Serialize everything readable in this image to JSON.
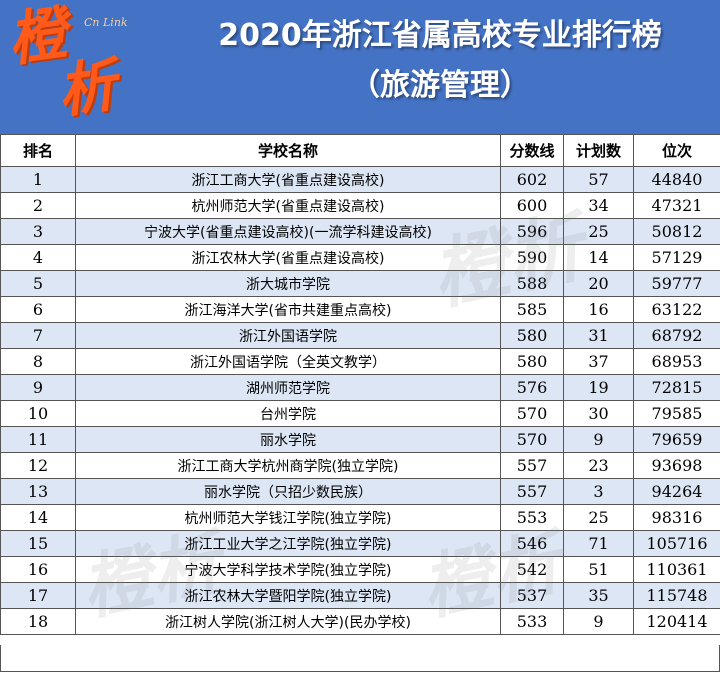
{
  "logo": {
    "line1": "橙",
    "line2": "析",
    "badge": "Cn Link"
  },
  "header": {
    "title": "2020年浙江省属高校专业排行榜",
    "subtitle": "（旅游管理）"
  },
  "table": {
    "columns": [
      "排名",
      "学校名称",
      "分数线",
      "计划数",
      "位次"
    ],
    "rows": [
      {
        "rank": "1",
        "school": "浙江工商大学(省重点建设高校)",
        "score": "602",
        "plan": "57",
        "position": "44840"
      },
      {
        "rank": "2",
        "school": "杭州师范大学(省重点建设高校)",
        "score": "600",
        "plan": "34",
        "position": "47321"
      },
      {
        "rank": "3",
        "school": "宁波大学(省重点建设高校)(一流学科建设高校)",
        "score": "596",
        "plan": "25",
        "position": "50812"
      },
      {
        "rank": "4",
        "school": "浙江农林大学(省重点建设高校)",
        "score": "590",
        "plan": "14",
        "position": "57129"
      },
      {
        "rank": "5",
        "school": "浙大城市学院",
        "score": "588",
        "plan": "20",
        "position": "59777"
      },
      {
        "rank": "6",
        "school": "浙江海洋大学(省市共建重点高校)",
        "score": "585",
        "plan": "16",
        "position": "63122"
      },
      {
        "rank": "7",
        "school": "浙江外国语学院",
        "score": "580",
        "plan": "31",
        "position": "68792"
      },
      {
        "rank": "8",
        "school": "浙江外国语学院（全英文教学）",
        "score": "580",
        "plan": "37",
        "position": "68953"
      },
      {
        "rank": "9",
        "school": "湖州师范学院",
        "score": "576",
        "plan": "19",
        "position": "72815"
      },
      {
        "rank": "10",
        "school": "台州学院",
        "score": "570",
        "plan": "30",
        "position": "79585"
      },
      {
        "rank": "11",
        "school": "丽水学院",
        "score": "570",
        "plan": "9",
        "position": "79659"
      },
      {
        "rank": "12",
        "school": "浙江工商大学杭州商学院(独立学院)",
        "score": "557",
        "plan": "23",
        "position": "93698"
      },
      {
        "rank": "13",
        "school": "丽水学院（只招少数民族）",
        "score": "557",
        "plan": "3",
        "position": "94264"
      },
      {
        "rank": "14",
        "school": "杭州师范大学钱江学院(独立学院)",
        "score": "553",
        "plan": "25",
        "position": "98316"
      },
      {
        "rank": "15",
        "school": "浙江工业大学之江学院(独立学院)",
        "score": "546",
        "plan": "71",
        "position": "105716"
      },
      {
        "rank": "16",
        "school": "宁波大学科学技术学院(独立学院)",
        "score": "542",
        "plan": "51",
        "position": "110361"
      },
      {
        "rank": "17",
        "school": "浙江农林大学暨阳学院(独立学院)",
        "score": "537",
        "plan": "35",
        "position": "115748"
      },
      {
        "rank": "18",
        "school": "浙江树人学院(浙江树人大学)(民办学校)",
        "score": "533",
        "plan": "9",
        "position": "120414"
      }
    ]
  },
  "watermark": "橙析",
  "colors": {
    "header_bg": "#4472c4",
    "logo": "#ff5a1a",
    "row_stripe": "#dce6f4"
  }
}
